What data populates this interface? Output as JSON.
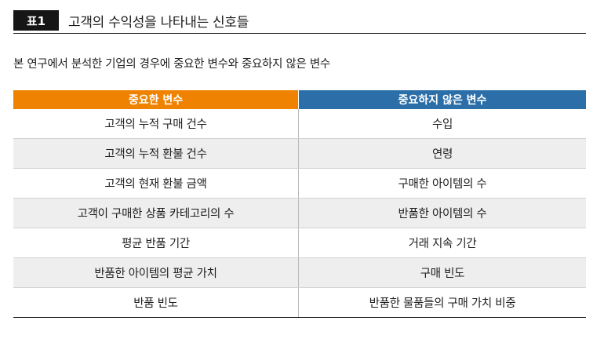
{
  "header": {
    "badge": "표1",
    "title": "고객의 수익성을 나타내는 신호들"
  },
  "subtitle": "본 연구에서 분석한 기업의 경우에 중요한 변수와 중요하지 않은 변수",
  "table": {
    "columns": [
      "중요한 변수",
      "중요하지 않은 변수"
    ],
    "column_colors": [
      "#ef8200",
      "#2c6fa8"
    ],
    "rows": [
      [
        "고객의 누적 구매 건수",
        "수입"
      ],
      [
        "고객의 누적 환불 건수",
        "연령"
      ],
      [
        "고객의 현재 환불 금액",
        "구매한 아이템의 수"
      ],
      [
        "고객이 구매한 상품 카테고리의 수",
        "반품한 아이템의 수"
      ],
      [
        "평균 반품 기간",
        "거래 지속 기간"
      ],
      [
        "반품한 아이템의 평균 가치",
        "구매 빈도"
      ],
      [
        "반품 빈도",
        "반품한 물품들의 구매 가치 비중"
      ]
    ]
  }
}
